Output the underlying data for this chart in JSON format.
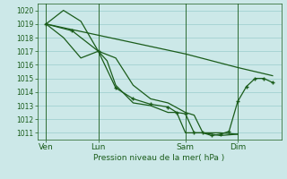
{
  "background_color": "#cce8e8",
  "grid_color": "#99cccc",
  "line_color": "#1a5c1a",
  "marker_color": "#1a5c1a",
  "xlabel_text": "Pression niveau de la mer( hPa )",
  "xtick_labels": [
    "Ven",
    "Lun",
    "Sam",
    "Dim"
  ],
  "xtick_positions": [
    0.5,
    3.5,
    8.5,
    11.5
  ],
  "ylim": [
    1010.5,
    1020.5
  ],
  "yticks": [
    1011,
    1012,
    1013,
    1014,
    1015,
    1016,
    1017,
    1018,
    1019,
    1020
  ],
  "xlim": [
    0,
    14
  ],
  "vline_positions": [
    0.5,
    3.5,
    8.5,
    11.5
  ],
  "series1_nomarker": {
    "x": [
      0.5,
      1.5,
      2.5,
      3.5,
      4.5,
      5.5,
      6.5,
      7.5,
      8.5,
      9.0,
      9.5,
      10.5,
      11.5
    ],
    "y": [
      1019.0,
      1020.0,
      1019.2,
      1017.0,
      1016.5,
      1014.5,
      1013.5,
      1013.2,
      1012.5,
      1012.3,
      1011.0,
      1011.0,
      1010.9
    ]
  },
  "series2_nomarker": {
    "x": [
      0.5,
      1.5,
      2.5,
      3.5,
      4.0,
      4.5,
      5.5,
      6.5,
      7.5,
      8.0,
      8.5,
      9.5,
      10.5,
      11.5
    ],
    "y": [
      1019.0,
      1018.0,
      1016.5,
      1017.0,
      1016.3,
      1014.5,
      1013.2,
      1013.0,
      1012.5,
      1012.5,
      1011.0,
      1011.0,
      1010.8,
      1010.9
    ]
  },
  "series3_straight": {
    "x": [
      0.5,
      8.5,
      11.5,
      13.5
    ],
    "y": [
      1019.0,
      1016.8,
      1015.8,
      1015.2
    ]
  },
  "series4_marker": {
    "x": [
      0.5,
      2.0,
      3.5,
      4.5,
      5.5,
      6.5,
      7.5,
      8.0,
      8.5,
      9.0,
      9.5,
      10.0,
      10.5,
      11.0,
      11.5,
      12.0,
      12.5,
      13.0,
      13.5
    ],
    "y": [
      1019.0,
      1018.5,
      1017.0,
      1014.3,
      1013.5,
      1013.1,
      1012.9,
      1012.5,
      1012.4,
      1011.0,
      1011.0,
      1010.8,
      1010.9,
      1011.1,
      1013.3,
      1014.4,
      1015.0,
      1015.0,
      1014.7
    ]
  }
}
